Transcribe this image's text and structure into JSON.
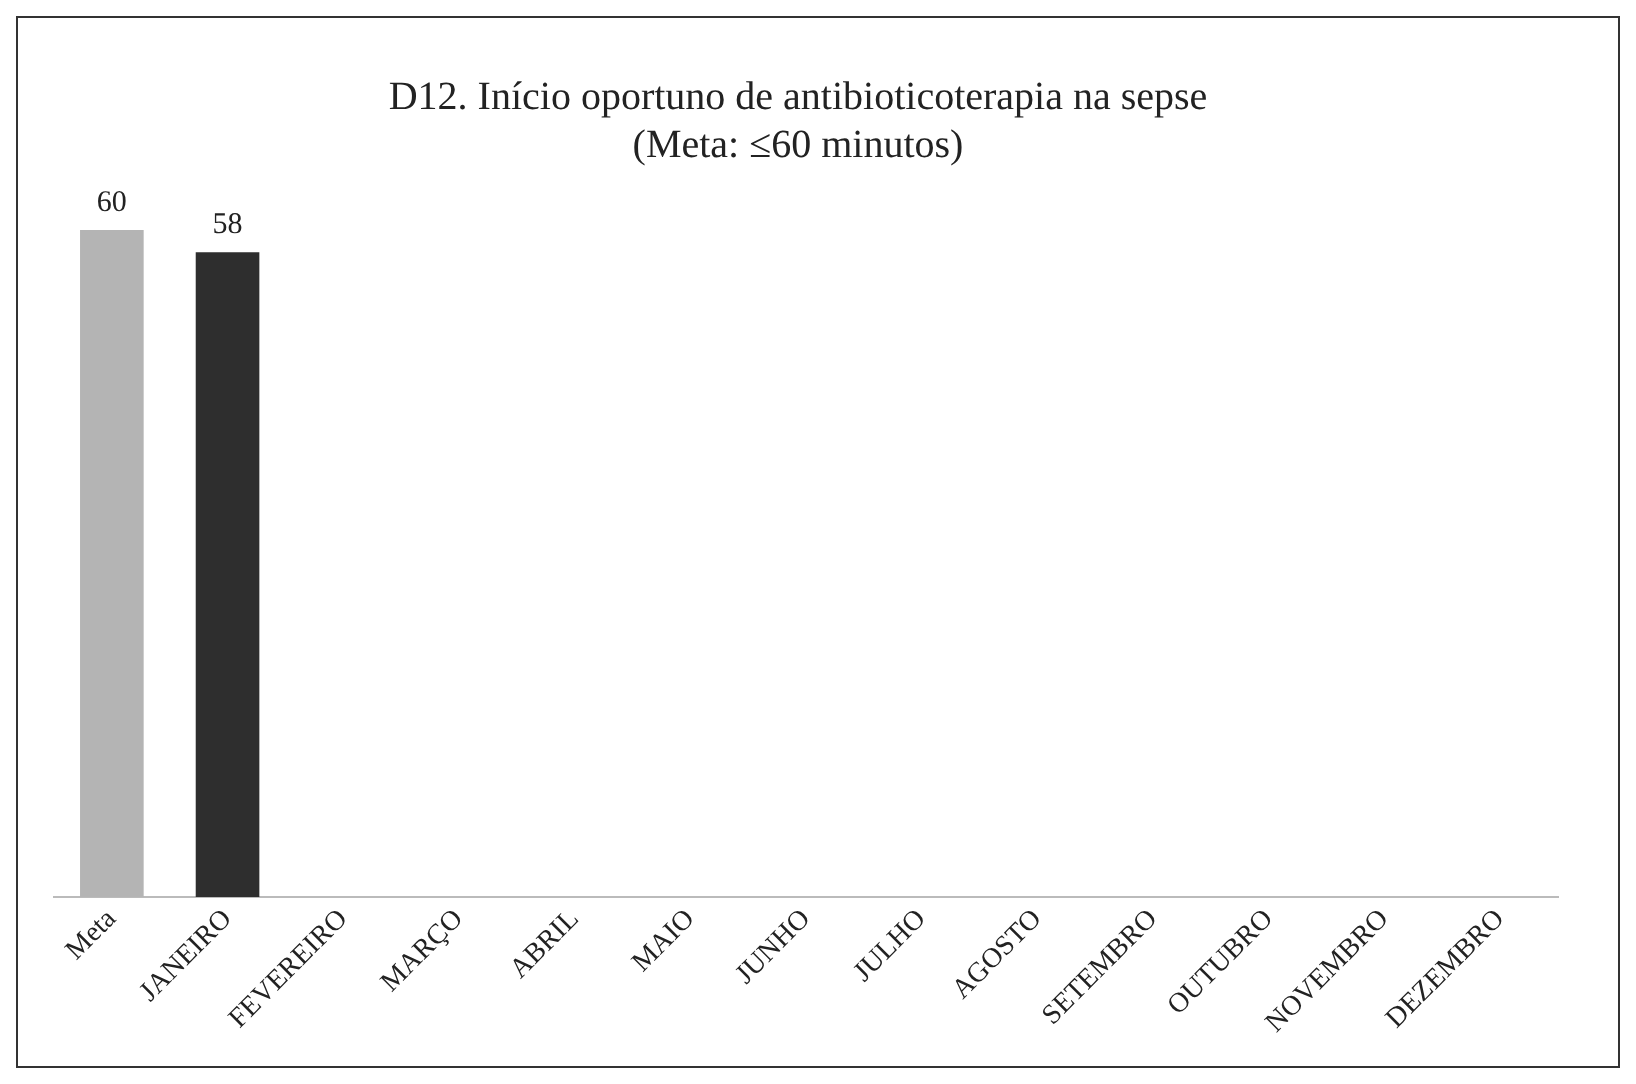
{
  "chart_data": {
    "type": "bar",
    "title": "D12. Início oportuno de antibioticoterapia na sepse",
    "subtitle": "(Meta: ≤60 minutos)",
    "categories": [
      "Meta",
      "JANEIRO",
      "FEVEREIRO",
      "MARÇO",
      "ABRIL",
      "MAIO",
      "JUNHO",
      "JULHO",
      "AGOSTO",
      "SETEMBRO",
      "OUTUBRO",
      "NOVEMBRO",
      "DEZEMBRO"
    ],
    "values": [
      60,
      58,
      null,
      null,
      null,
      null,
      null,
      null,
      null,
      null,
      null,
      null,
      null
    ],
    "colors": [
      "#b4b4b4",
      "#2e2e2e",
      "#2e2e2e",
      "#2e2e2e",
      "#2e2e2e",
      "#2e2e2e",
      "#2e2e2e",
      "#2e2e2e",
      "#2e2e2e",
      "#2e2e2e",
      "#2e2e2e",
      "#2e2e2e",
      "#2e2e2e"
    ],
    "tick_labels": "x",
    "data_labels": true,
    "legend": false
  }
}
